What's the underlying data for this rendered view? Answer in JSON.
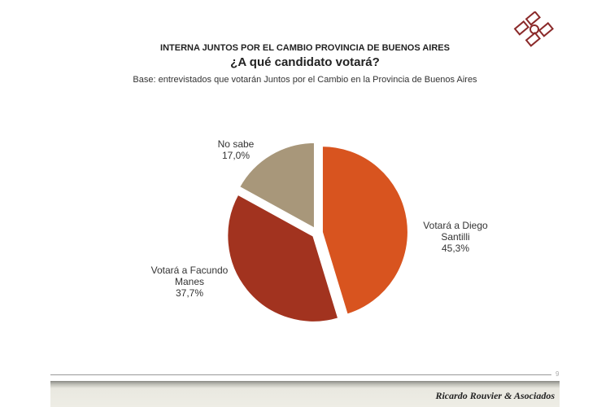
{
  "header": {
    "title": "INTERNA JUNTOS POR EL CAMBIO PROVINCIA DE BUENOS AIRES",
    "question": "¿A qué candidato votará?",
    "base": "Base: entrevistados que votarán Juntos por el Cambio en la Provincia de Buenos Aires"
  },
  "chart_data": {
    "type": "pie",
    "title": "¿A qué candidato votará?",
    "labels": [
      "Votará a Diego Santilli",
      "Votará a Facundo Manes",
      "No sabe"
    ],
    "values": [
      45.3,
      37.7,
      17.0
    ],
    "value_labels": [
      "45,3%",
      "37,7%",
      "17,0%"
    ],
    "colors": [
      "#D8541F",
      "#A2331F",
      "#A8977A"
    ]
  },
  "footer": {
    "brand": "Ricardo Rouvier & Asociados",
    "page": "9"
  }
}
